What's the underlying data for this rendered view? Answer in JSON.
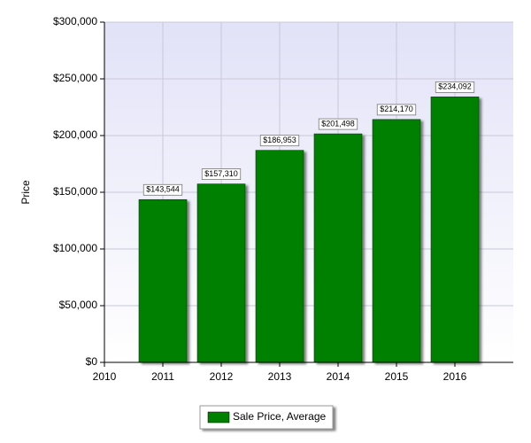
{
  "chart_data": {
    "type": "bar",
    "y_label": "Price",
    "x": [
      2011,
      2012,
      2013,
      2014,
      2015,
      2016
    ],
    "series": [
      {
        "name": "Sale Price, Average",
        "color": "#008000",
        "values": [
          143544,
          157310,
          186953,
          201498,
          214170,
          234092
        ],
        "value_labels": [
          "$143,544",
          "$157,310",
          "$186,953",
          "$201,498",
          "$214,170",
          "$234,092"
        ]
      }
    ],
    "xlim": [
      2010,
      2017
    ],
    "xticks": [
      2010,
      2011,
      2012,
      2013,
      2014,
      2015,
      2016
    ],
    "ylim": [
      0,
      300000
    ],
    "yticks": [
      {
        "value": 0,
        "label": "$0"
      },
      {
        "value": 50000,
        "label": "$50,000"
      },
      {
        "value": 100000,
        "label": "$100,000"
      },
      {
        "value": 150000,
        "label": "$150,000"
      },
      {
        "value": 200000,
        "label": "$200,000"
      },
      {
        "value": 250000,
        "label": "$250,000"
      },
      {
        "value": 300000,
        "label": "$300,000"
      }
    ],
    "grid": true,
    "legend": "bottom"
  }
}
